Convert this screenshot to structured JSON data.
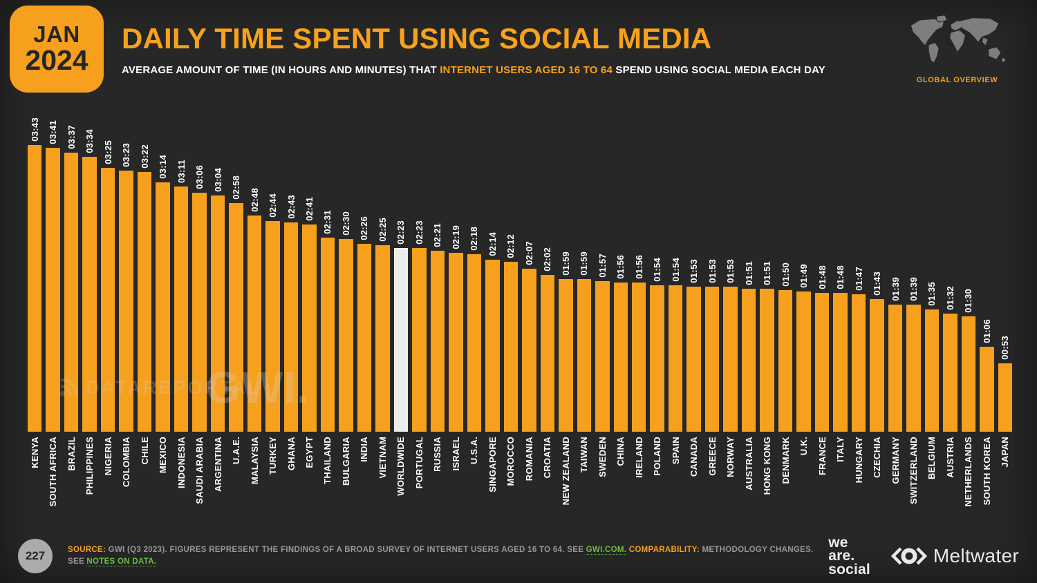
{
  "slide": {
    "date_badge": {
      "month": "JAN",
      "year": "2024"
    },
    "title": "DAILY TIME SPENT USING SOCIAL MEDIA",
    "subtitle_prefix": "AVERAGE AMOUNT OF TIME (IN HOURS AND MINUTES) THAT ",
    "subtitle_highlight": "INTERNET USERS AGED 16 TO 64",
    "subtitle_suffix": " SPEND USING SOCIAL MEDIA EACH DAY",
    "map_caption": "GLOBAL OVERVIEW",
    "watermark_left": "DATAREPORTAL",
    "watermark_right": "GWI.",
    "footer": {
      "page_number": "227",
      "source_label": "SOURCE:",
      "source_text_1": " GWI (Q3 2023). FIGURES REPRESENT THE FINDINGS OF A BROAD SURVEY OF INTERNET USERS AGED 16 TO 64. SEE ",
      "source_link_1": "GWI.COM.",
      "comparability_label": "COMPARABILITY:",
      "source_text_2": " METHODOLOGY CHANGES. SEE ",
      "source_link_2": "NOTES ON DATA."
    },
    "logos": {
      "we_are_social_lines": [
        "we",
        "are.",
        "social"
      ],
      "meltwater": "Meltwater"
    }
  },
  "chart_data": {
    "type": "bar",
    "title": "DAILY TIME SPENT USING SOCIAL MEDIA",
    "unit": "hours:minutes per day",
    "grid": false,
    "value_labels_rotated": true,
    "bar_color": "#F7A01D",
    "highlight_bar_color": "#EDEDED",
    "highlight_category": "WORLDWIDE",
    "ylim_minutes": [
      0,
      223
    ],
    "categories": [
      "KENYA",
      "SOUTH AFRICA",
      "BRAZIL",
      "PHILIPPINES",
      "NIGERIA",
      "COLOMBIA",
      "CHILE",
      "MEXICO",
      "INDONESIA",
      "SAUDI ARABIA",
      "ARGENTINA",
      "U.A.E.",
      "MALAYSIA",
      "TURKEY",
      "GHANA",
      "EGYPT",
      "THAILAND",
      "BULGARIA",
      "INDIA",
      "VIETNAM",
      "WORLDWIDE",
      "PORTUGAL",
      "RUSSIA",
      "ISRAEL",
      "U.S.A.",
      "SINGAPORE",
      "MOROCCO",
      "ROMANIA",
      "CROATIA",
      "NEW ZEALAND",
      "TAIWAN",
      "SWEDEN",
      "CHINA",
      "IRELAND",
      "POLAND",
      "SPAIN",
      "CANADA",
      "GREECE",
      "NORWAY",
      "AUSTRALIA",
      "HONG KONG",
      "DENMARK",
      "U.K.",
      "FRANCE",
      "ITALY",
      "HUNGARY",
      "CZECHIA",
      "GERMANY",
      "SWITZERLAND",
      "BELGIUM",
      "AUSTRIA",
      "NETHERLANDS",
      "SOUTH KOREA",
      "JAPAN"
    ],
    "values": [
      "03:43",
      "03:41",
      "03:37",
      "03:34",
      "03:25",
      "03:23",
      "03:22",
      "03:14",
      "03:11",
      "03:06",
      "03:04",
      "02:58",
      "02:48",
      "02:44",
      "02:43",
      "02:41",
      "02:31",
      "02:30",
      "02:26",
      "02:25",
      "02:23",
      "02:23",
      "02:21",
      "02:19",
      "02:18",
      "02:14",
      "02:12",
      "02:07",
      "02:02",
      "01:59",
      "01:59",
      "01:57",
      "01:56",
      "01:56",
      "01:54",
      "01:54",
      "01:53",
      "01:53",
      "01:53",
      "01:51",
      "01:51",
      "01:50",
      "01:49",
      "01:48",
      "01:48",
      "01:47",
      "01:43",
      "01:39",
      "01:39",
      "01:35",
      "01:32",
      "01:30",
      "01:06",
      "00:53"
    ],
    "values_in_minutes": [
      223,
      221,
      217,
      214,
      205,
      203,
      202,
      194,
      191,
      186,
      184,
      178,
      168,
      164,
      163,
      161,
      151,
      150,
      146,
      145,
      143,
      143,
      141,
      139,
      138,
      134,
      132,
      127,
      122,
      119,
      119,
      117,
      116,
      116,
      114,
      114,
      113,
      113,
      113,
      111,
      111,
      110,
      109,
      108,
      108,
      107,
      103,
      99,
      99,
      95,
      92,
      90,
      66,
      53
    ]
  }
}
